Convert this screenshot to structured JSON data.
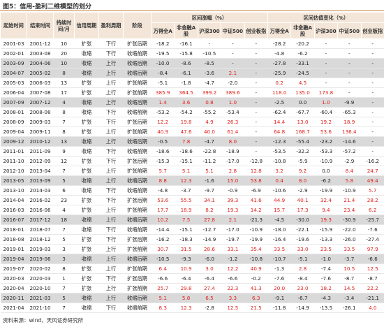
{
  "title": "图5：信用-盈利二维模型的划分",
  "header": {
    "fixed": [
      "起始时间",
      "结束时间",
      "持续时间/月",
      "信用周期",
      "盈利周期",
      "阶段"
    ],
    "groups": [
      {
        "label": "区间涨幅（%）",
        "columns": [
          "万得全A",
          "非金融A股",
          "沪深300",
          "中证500",
          "创业板指"
        ]
      },
      {
        "label": "区间估值变化（%）",
        "columns": [
          "万得全A",
          "非金融A股",
          "沪深300",
          "中证500",
          "创业板指"
        ]
      }
    ]
  },
  "rows": [
    [
      "2001-03",
      "2001-12",
      "10",
      "扩张",
      "下行",
      "扩张后期",
      "-18.2",
      "-16.1",
      "-",
      "-",
      "-",
      "-28.2",
      "-20.2",
      "-",
      "-",
      "-"
    ],
    [
      "2002-01",
      "2003-08",
      "20",
      "收缩",
      "下行",
      "收缩前期",
      "-19.5",
      "-15.8",
      "-10.5",
      "-",
      "-",
      "-4.8",
      "-6.2",
      "-",
      "-",
      "-"
    ],
    [
      "2003-09",
      "2004-06",
      "10",
      "收缩",
      "上行",
      "收缩后期",
      "-10.0",
      "-8.6",
      "-8.5",
      "-",
      "-",
      "-27.8",
      "-33.1",
      "-",
      "-",
      "-"
    ],
    [
      "2004-07",
      "2005-02",
      "8",
      "收缩",
      "上行",
      "收缩后期",
      "-8.4",
      "-6.1",
      "-3.6",
      "2.1",
      "-",
      "-25.9",
      "-24.5",
      "-",
      "-",
      "-"
    ],
    [
      "2005-03",
      "2006-03",
      "13",
      "扩张",
      "上行",
      "扩张前期",
      "-5.1",
      "-1.8",
      "-4.7",
      "-2.0",
      "-",
      "0.2",
      "4.5",
      "-",
      "-",
      "-"
    ],
    [
      "2006-04",
      "2007-08",
      "17",
      "扩张",
      "上行",
      "扩张前期",
      "385.9",
      "364.5",
      "399.2",
      "389.6",
      "-",
      "118.0",
      "135.0",
      "173.8",
      "-",
      "-"
    ],
    [
      "2007-09",
      "2007-12",
      "4",
      "收缩",
      "上行",
      "收缩后期",
      "1.4",
      "3.6",
      "0.8",
      "1.0",
      "-",
      "-2.5",
      "0.0",
      "1.0",
      "-9.9",
      "-"
    ],
    [
      "2008-01",
      "2008-08",
      "8",
      "收缩",
      "下行",
      "收缩前期",
      "-53.2",
      "-54.2",
      "-55.2",
      "-53.4",
      "-",
      "-62.4",
      "-67.7",
      "-60.4",
      "-65.3",
      "-"
    ],
    [
      "2008-09",
      "2009-03",
      "7",
      "扩张",
      "下行",
      "扩张后期",
      "12.2",
      "19.8",
      "4.9",
      "26.3",
      "-",
      "14.4",
      "13.0",
      "19.2",
      "18.9",
      "-"
    ],
    [
      "2009-04",
      "2009-11",
      "8",
      "扩张",
      "上行",
      "扩张前期",
      "40.9",
      "47.6",
      "40.0",
      "61.4",
      "-",
      "64.8",
      "168.7",
      "53.6",
      "136.4",
      "-"
    ],
    [
      "2009-12",
      "2010-12",
      "13",
      "收缩",
      "上行",
      "收缩后期",
      "-0.5",
      "7.8",
      "-4.7",
      "8.0",
      "-",
      "-12.3",
      "-55.4",
      "-23.2",
      "-14.6",
      "-"
    ],
    [
      "2011-01",
      "2011-09",
      "9",
      "收缩",
      "下行",
      "收缩前期",
      "-18.6",
      "-18.6",
      "-22.8",
      "-18.9",
      "-",
      "-53.5",
      "-32.2",
      "-53.3",
      "-57.2",
      "-"
    ],
    [
      "2011-10",
      "2012-09",
      "12",
      "扩张",
      "下行",
      "扩张后期",
      "-15.3",
      "-15.1",
      "-11.2",
      "-17.0",
      "-12.8",
      "-10.8",
      "-5.9",
      "-10.9",
      "-2.9",
      "-16.2"
    ],
    [
      "2012-10",
      "2013-04",
      "7",
      "扩张",
      "上行",
      "扩张前期",
      "5.7",
      "5.1",
      "5.1",
      "2.8",
      "12.8",
      "3.2",
      "9.2",
      "0.0",
      "8.4",
      "24.7"
    ],
    [
      "2013-05",
      "2013-09",
      "5",
      "收缩",
      "上行",
      "收缩后期",
      "8.8",
      "12.3",
      "-1.6",
      "15.0",
      "53.8",
      "0.4",
      "8.0",
      "-6.2",
      "5.8",
      "49.4"
    ],
    [
      "2013-10",
      "2014-03",
      "6",
      "收缩",
      "下行",
      "收缩前期",
      "-4.8",
      "-3.7",
      "-9.7",
      "-0.9",
      "-6.9",
      "-10.6",
      "-2.9",
      "-19.9",
      "-10.9",
      "5.7"
    ],
    [
      "2014-04",
      "2016-02",
      "23",
      "扩张",
      "下行",
      "扩张后期",
      "53.6",
      "55.5",
      "34.1",
      "39.3",
      "41.6",
      "44.9",
      "40.1",
      "32.4",
      "21.4",
      "28.2"
    ],
    [
      "2016-03",
      "2016-06",
      "4",
      "扩张",
      "上行",
      "扩张前期",
      "17.7",
      "18.9",
      "8.2",
      "19.3",
      "14.2",
      "15.7",
      "17.3",
      "9.4",
      "23.4",
      "6.2"
    ],
    [
      "2016-07",
      "2017-12",
      "18",
      "收缩",
      "上行",
      "收缩后期",
      "10.2",
      "7.5",
      "27.8",
      "2.1",
      "-21.3",
      "-4.5",
      "-30.0",
      "19.3",
      "-30.9",
      "-25.7"
    ],
    [
      "2018-01",
      "2018-07",
      "7",
      "收缩",
      "下行",
      "收缩前期",
      "-14.4",
      "-15.1",
      "-12.7",
      "-17.0",
      "-10.9",
      "-18.0",
      "-22.1",
      "-15.9",
      "-22.0",
      "-7.6"
    ],
    [
      "2018-08",
      "2018-12",
      "5",
      "扩张",
      "下行",
      "扩张后期",
      "-16.2",
      "-18.3",
      "-14.9",
      "-19.7",
      "-19.9",
      "-16.4",
      "-19.6",
      "-13.3",
      "-26.0",
      "-27.4"
    ],
    [
      "2019-01",
      "2019-03",
      "3",
      "扩张",
      "上行",
      "扩张前期",
      "30.7",
      "31.5",
      "28.6",
      "33.1",
      "35.4",
      "33.5",
      "33.0",
      "23.5",
      "33.5",
      "97.9"
    ],
    [
      "2019-04",
      "2019-06",
      "3",
      "收缩",
      "上行",
      "收缩后期",
      "-10.5",
      "-9.3",
      "-6.0",
      "-1.2",
      "-10.8",
      "-10.7",
      "-5.1",
      "-1.0",
      "-3.7",
      "-6.6"
    ],
    [
      "2019-07",
      "2020-02",
      "8",
      "扩张",
      "上行",
      "扩张前期",
      "6.4",
      "10.9",
      "3.0",
      "12.2",
      "40.9",
      "-1.3",
      "2.8",
      "-7.4",
      "10.5",
      "12.5"
    ],
    [
      "2020-03",
      "2020-03",
      "1",
      "扩张",
      "下行",
      "扩张后期",
      "-6.6",
      "-6.4",
      "-6.4",
      "-6.6",
      "-0.2",
      "-7.6",
      "-8.4",
      "-7.6",
      "-8.7",
      "-8.7"
    ],
    [
      "2020-04",
      "2020-10",
      "7",
      "扩张",
      "上行",
      "扩张前期",
      "25.7",
      "29.8",
      "27.4",
      "22.3",
      "41.3",
      "20.0",
      "23.0",
      "18.2",
      "14.5",
      "22.2"
    ],
    [
      "2020-11",
      "2021-03",
      "5",
      "收缩",
      "上行",
      "收缩后期",
      "5.1",
      "5.8",
      "6.5",
      "3.3",
      "6.3",
      "-9.1",
      "-6.7",
      "-4.3",
      "-3.4",
      "-21.1"
    ],
    [
      "2021-04",
      "2021-10",
      "7",
      "收缩",
      "下行",
      "收缩前期",
      "8.3",
      "12.3",
      "-2.8",
      "12.5",
      "21.5",
      "-11.8",
      "-14.9",
      "-13.5",
      "-26.1",
      "4.0"
    ]
  ],
  "source": "资料来源：wind，天风证券研究所"
}
